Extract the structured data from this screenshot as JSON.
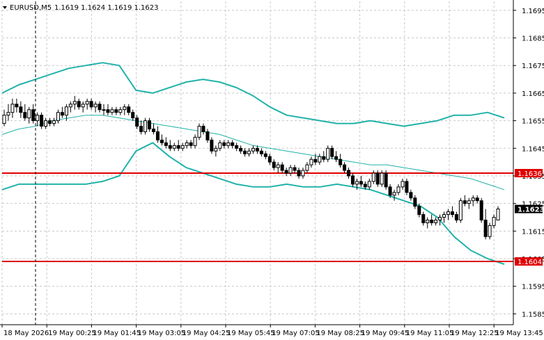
{
  "header": {
    "symbol": "EURUSD,M5",
    "ohlc": "1.1619 1.1624 1.1619 1.1623",
    "menu_arrow": "triangle-down-icon"
  },
  "colors": {
    "background": "#ffffff",
    "grid": "#c8c8c8",
    "axis": "#000000",
    "candle": "#000000",
    "bollinger": "#20b2aa",
    "level_line": "#e00000",
    "level_label_bg": "#e00000",
    "price_label_bg": "#000000"
  },
  "current_price": "1.1623",
  "chart_data": {
    "type": "candlestick",
    "instrument": "EURUSD",
    "timeframe": "M5",
    "ylim": [
      1.158,
      1.17
    ],
    "grid": true,
    "y_ticks": [
      "1.1695",
      "1.1685",
      "1.1675",
      "1.1665",
      "1.1655",
      "1.1645",
      "1.1635",
      "1.1625",
      "1.1615",
      "1.1605",
      "1.1595",
      "1.1585"
    ],
    "x_ticks": [
      "18 May 2026",
      "19 May 00:25",
      "19 May 01:45",
      "19 May 03:05",
      "19 May 04:25",
      "19 May 05:45",
      "19 May 07:05",
      "19 May 08:25",
      "19 May 09:45",
      "19 May 11:05",
      "19 May 12:25",
      "19 May 13:45"
    ],
    "levels": [
      {
        "label": "1.1636",
        "value": 1.1636
      },
      {
        "label": "1.1604",
        "value": 1.1604
      }
    ],
    "candles": [
      [
        1.1654,
        1.1659,
        1.1653,
        1.1657
      ],
      [
        1.1657,
        1.1661,
        1.1655,
        1.1658
      ],
      [
        1.1658,
        1.1663,
        1.1656,
        1.1661
      ],
      [
        1.1661,
        1.1663,
        1.1658,
        1.166
      ],
      [
        1.166,
        1.1662,
        1.1656,
        1.1658
      ],
      [
        1.1658,
        1.1661,
        1.1655,
        1.1656
      ],
      [
        1.1656,
        1.166,
        1.1654,
        1.1659
      ],
      [
        1.1659,
        1.1661,
        1.1654,
        1.1655
      ],
      [
        1.1655,
        1.1658,
        1.1653,
        1.1657
      ],
      [
        1.1657,
        1.1658,
        1.1652,
        1.1653
      ],
      [
        1.1653,
        1.1656,
        1.1652,
        1.1655
      ],
      [
        1.1655,
        1.1656,
        1.1653,
        1.1654
      ],
      [
        1.1654,
        1.1656,
        1.1653,
        1.1655
      ],
      [
        1.1655,
        1.1659,
        1.1654,
        1.1658
      ],
      [
        1.1658,
        1.166,
        1.1656,
        1.1657
      ],
      [
        1.1657,
        1.1661,
        1.1655,
        1.166
      ],
      [
        1.166,
        1.1662,
        1.1658,
        1.1661
      ],
      [
        1.1661,
        1.1664,
        1.1659,
        1.1662
      ],
      [
        1.1662,
        1.1663,
        1.1659,
        1.166
      ],
      [
        1.166,
        1.1662,
        1.1658,
        1.1661
      ],
      [
        1.1661,
        1.1663,
        1.1659,
        1.1662
      ],
      [
        1.1662,
        1.1663,
        1.1659,
        1.166
      ],
      [
        1.166,
        1.1662,
        1.1658,
        1.1661
      ],
      [
        1.1661,
        1.1662,
        1.1658,
        1.1659
      ],
      [
        1.1659,
        1.1661,
        1.1657,
        1.1659
      ],
      [
        1.1659,
        1.1661,
        1.1657,
        1.1658
      ],
      [
        1.1658,
        1.166,
        1.1657,
        1.1659
      ],
      [
        1.1659,
        1.166,
        1.1657,
        1.1658
      ],
      [
        1.1658,
        1.166,
        1.1657,
        1.1659
      ],
      [
        1.1659,
        1.1661,
        1.1657,
        1.166
      ],
      [
        1.166,
        1.1661,
        1.1657,
        1.1658
      ],
      [
        1.1658,
        1.1659,
        1.1655,
        1.1656
      ],
      [
        1.1656,
        1.1657,
        1.1652,
        1.1653
      ],
      [
        1.1653,
        1.1655,
        1.165,
        1.1651
      ],
      [
        1.1651,
        1.1656,
        1.165,
        1.1655
      ],
      [
        1.1655,
        1.1656,
        1.1651,
        1.1652
      ],
      [
        1.1652,
        1.1654,
        1.165,
        1.1651
      ],
      [
        1.1651,
        1.1653,
        1.1647,
        1.1648
      ],
      [
        1.1648,
        1.165,
        1.1646,
        1.1647
      ],
      [
        1.1647,
        1.1649,
        1.1645,
        1.1646
      ],
      [
        1.1646,
        1.1648,
        1.1644,
        1.1645
      ],
      [
        1.1645,
        1.1647,
        1.1644,
        1.1646
      ],
      [
        1.1646,
        1.1648,
        1.1644,
        1.1645
      ],
      [
        1.1645,
        1.1647,
        1.1644,
        1.1646
      ],
      [
        1.1646,
        1.1648,
        1.1645,
        1.1647
      ],
      [
        1.1647,
        1.1648,
        1.1645,
        1.1646
      ],
      [
        1.1646,
        1.165,
        1.1645,
        1.1649
      ],
      [
        1.1649,
        1.1654,
        1.1648,
        1.1653
      ],
      [
        1.1653,
        1.1654,
        1.165,
        1.1651
      ],
      [
        1.1651,
        1.1652,
        1.1647,
        1.1648
      ],
      [
        1.1648,
        1.1649,
        1.1643,
        1.1644
      ],
      [
        1.1644,
        1.1646,
        1.1642,
        1.1645
      ],
      [
        1.1645,
        1.1648,
        1.1644,
        1.1647
      ],
      [
        1.1647,
        1.1648,
        1.1645,
        1.1646
      ],
      [
        1.1646,
        1.1648,
        1.1645,
        1.1647
      ],
      [
        1.1647,
        1.1648,
        1.1645,
        1.1646
      ],
      [
        1.1646,
        1.1647,
        1.1644,
        1.1645
      ],
      [
        1.1645,
        1.1646,
        1.1643,
        1.1644
      ],
      [
        1.1644,
        1.1645,
        1.1642,
        1.1643
      ],
      [
        1.1643,
        1.1645,
        1.1642,
        1.1644
      ],
      [
        1.1644,
        1.1646,
        1.1643,
        1.1645
      ],
      [
        1.1645,
        1.1646,
        1.1643,
        1.1644
      ],
      [
        1.1644,
        1.1645,
        1.1642,
        1.1643
      ],
      [
        1.1643,
        1.1644,
        1.1641,
        1.1642
      ],
      [
        1.1642,
        1.1643,
        1.1639,
        1.164
      ],
      [
        1.164,
        1.1641,
        1.1637,
        1.1638
      ],
      [
        1.1638,
        1.164,
        1.1636,
        1.1639
      ],
      [
        1.1639,
        1.164,
        1.1636,
        1.1637
      ],
      [
        1.1637,
        1.1638,
        1.1635,
        1.1636
      ],
      [
        1.1636,
        1.1639,
        1.1635,
        1.1638
      ],
      [
        1.1638,
        1.1639,
        1.1636,
        1.1637
      ],
      [
        1.1637,
        1.1638,
        1.1634,
        1.1635
      ],
      [
        1.1635,
        1.1638,
        1.1634,
        1.1637
      ],
      [
        1.1637,
        1.164,
        1.1636,
        1.1639
      ],
      [
        1.1639,
        1.1642,
        1.1638,
        1.1641
      ],
      [
        1.1641,
        1.1643,
        1.1639,
        1.164
      ],
      [
        1.164,
        1.1643,
        1.1639,
        1.1642
      ],
      [
        1.1642,
        1.1644,
        1.164,
        1.1641
      ],
      [
        1.1641,
        1.1646,
        1.164,
        1.1645
      ],
      [
        1.1645,
        1.1646,
        1.1641,
        1.1642
      ],
      [
        1.1642,
        1.1644,
        1.164,
        1.1641
      ],
      [
        1.1641,
        1.1643,
        1.1638,
        1.1639
      ],
      [
        1.1639,
        1.164,
        1.1636,
        1.1637
      ],
      [
        1.1637,
        1.1638,
        1.1634,
        1.1635
      ],
      [
        1.1635,
        1.1636,
        1.1631,
        1.1632
      ],
      [
        1.1632,
        1.1634,
        1.163,
        1.1633
      ],
      [
        1.1633,
        1.1635,
        1.1631,
        1.1632
      ],
      [
        1.1632,
        1.1633,
        1.163,
        1.1631
      ],
      [
        1.1631,
        1.1634,
        1.163,
        1.1633
      ],
      [
        1.1633,
        1.1637,
        1.1632,
        1.1636
      ],
      [
        1.1636,
        1.1637,
        1.1631,
        1.1632
      ],
      [
        1.1632,
        1.1637,
        1.1631,
        1.1636
      ],
      [
        1.1636,
        1.1637,
        1.163,
        1.1631
      ],
      [
        1.1631,
        1.1632,
        1.1627,
        1.1628
      ],
      [
        1.1628,
        1.163,
        1.1626,
        1.1629
      ],
      [
        1.1629,
        1.1632,
        1.1628,
        1.1631
      ],
      [
        1.1631,
        1.1634,
        1.163,
        1.1633
      ],
      [
        1.1633,
        1.1634,
        1.1628,
        1.1629
      ],
      [
        1.1629,
        1.163,
        1.1626,
        1.1627
      ],
      [
        1.1627,
        1.1628,
        1.1623,
        1.1624
      ],
      [
        1.1624,
        1.1625,
        1.162,
        1.1621
      ],
      [
        1.1621,
        1.1622,
        1.1617,
        1.1618
      ],
      [
        1.1618,
        1.162,
        1.1616,
        1.1619
      ],
      [
        1.1619,
        1.1621,
        1.1617,
        1.1618
      ],
      [
        1.1618,
        1.162,
        1.1617,
        1.1619
      ],
      [
        1.1619,
        1.1621,
        1.1617,
        1.162
      ],
      [
        1.162,
        1.1622,
        1.1618,
        1.1621
      ],
      [
        1.1621,
        1.1623,
        1.1619,
        1.1622
      ],
      [
        1.1622,
        1.1624,
        1.162,
        1.1621
      ],
      [
        1.1621,
        1.1622,
        1.1618,
        1.1619
      ],
      [
        1.1619,
        1.1627,
        1.1618,
        1.1626
      ],
      [
        1.1626,
        1.1628,
        1.1624,
        1.1625
      ],
      [
        1.1625,
        1.1627,
        1.1623,
        1.1626
      ],
      [
        1.1626,
        1.1628,
        1.1624,
        1.1627
      ],
      [
        1.1627,
        1.1628,
        1.1625,
        1.1626
      ],
      [
        1.1626,
        1.1627,
        1.1618,
        1.1619
      ],
      [
        1.1619,
        1.1623,
        1.1612,
        1.1613
      ],
      [
        1.1613,
        1.1618,
        1.1612,
        1.1617
      ],
      [
        1.1617,
        1.1621,
        1.1616,
        1.162
      ],
      [
        1.1619,
        1.1624,
        1.1619,
        1.1623
      ]
    ],
    "bollinger_upper": [
      1.1665,
      1.1668,
      1.167,
      1.1672,
      1.1674,
      1.1675,
      1.1676,
      1.1675,
      1.1666,
      1.1665,
      1.1667,
      1.1669,
      1.167,
      1.1669,
      1.1667,
      1.1664,
      1.166,
      1.1657,
      1.1656,
      1.1655,
      1.1654,
      1.1654,
      1.1655,
      1.1654,
      1.1653,
      1.1654,
      1.1655,
      1.1657,
      1.1657,
      1.1658,
      1.1656
    ],
    "bollinger_middle": [
      1.165,
      1.1652,
      1.1653,
      1.1655,
      1.1656,
      1.1657,
      1.1657,
      1.1656,
      1.1655,
      1.1654,
      1.1653,
      1.1652,
      1.1651,
      1.165,
      1.1648,
      1.1646,
      1.1645,
      1.1644,
      1.1643,
      1.1642,
      1.1641,
      1.164,
      1.1639,
      1.1639,
      1.1638,
      1.1637,
      1.1636,
      1.1635,
      1.1634,
      1.1632,
      1.163
    ],
    "bollinger_lower": [
      1.163,
      1.1632,
      1.1632,
      1.1632,
      1.1632,
      1.1632,
      1.1633,
      1.1635,
      1.1644,
      1.1647,
      1.1642,
      1.1638,
      1.1636,
      1.1634,
      1.1632,
      1.1631,
      1.1631,
      1.1632,
      1.1631,
      1.1631,
      1.1632,
      1.1631,
      1.163,
      1.1628,
      1.1626,
      1.1624,
      1.162,
      1.1613,
      1.1608,
      1.1605,
      1.1603
    ]
  }
}
